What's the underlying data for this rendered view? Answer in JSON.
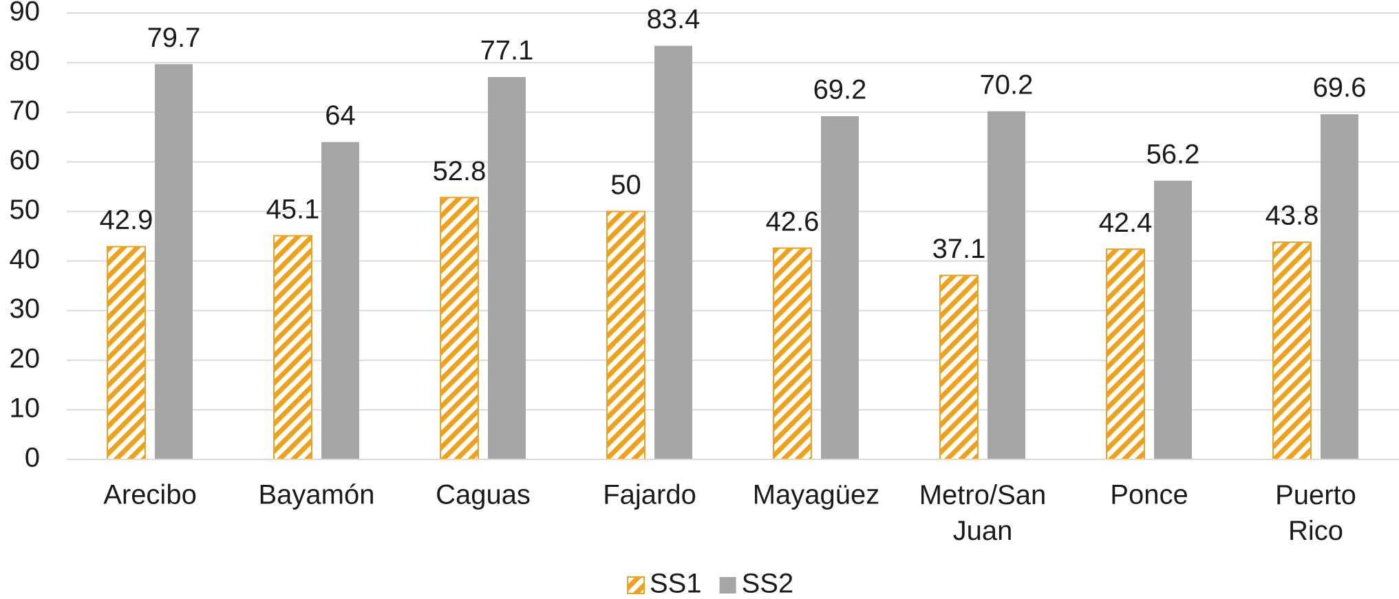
{
  "chart_data": {
    "type": "bar",
    "categories": [
      "Arecibo",
      "Bayamón",
      "Caguas",
      "Fajardo",
      "Mayagüez",
      "Metro/San Juan",
      "Ponce",
      "Puerto Rico"
    ],
    "series": [
      {
        "name": "SS1",
        "color": "#f0a11c",
        "pattern": "hatch",
        "values": [
          42.9,
          45.1,
          52.8,
          50,
          42.6,
          37.1,
          42.4,
          43.8
        ]
      },
      {
        "name": "SS2",
        "color": "#a6a6a6",
        "values": [
          79.7,
          64,
          77.1,
          83.4,
          69.2,
          70.2,
          56.2,
          69.6
        ]
      }
    ],
    "ylim": [
      0,
      90
    ],
    "yticks": [
      0,
      10,
      20,
      30,
      40,
      50,
      60,
      70,
      80,
      90
    ],
    "grid": true,
    "legend": "bottom"
  }
}
